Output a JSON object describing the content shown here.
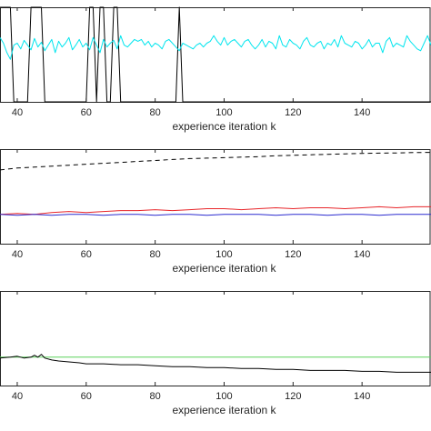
{
  "chart_data": [
    {
      "type": "line",
      "xlabel": "experience iteration k",
      "xlim": [
        35,
        160
      ],
      "ylim": [
        0,
        1
      ],
      "xticks": [
        40,
        60,
        80,
        100,
        120,
        140
      ],
      "grid": false,
      "series": [
        {
          "color": "#000000",
          "x": [
            35,
            36,
            37,
            38,
            39,
            40,
            41,
            42,
            43,
            44,
            45,
            46,
            47,
            48,
            49,
            50,
            51,
            52,
            53,
            54,
            55,
            56,
            57,
            58,
            59,
            60,
            61,
            62,
            63,
            64,
            65,
            66,
            67,
            68,
            69,
            70,
            71,
            72,
            73,
            74,
            75,
            76,
            77,
            78,
            79,
            80,
            81,
            82,
            83,
            84,
            85,
            86,
            87,
            88,
            89,
            90,
            95,
            100,
            110,
            120,
            130,
            140,
            150,
            160
          ],
          "y": [
            1,
            1,
            1,
            1,
            0,
            0,
            0,
            0,
            0,
            1,
            1,
            1,
            1,
            0,
            0,
            0,
            0,
            0,
            0,
            0,
            0,
            0,
            0,
            0,
            0,
            0,
            1,
            1,
            0,
            1,
            1,
            0,
            0,
            1,
            1,
            0,
            0,
            0,
            0,
            0,
            0,
            0,
            0,
            0,
            0,
            0,
            0,
            0,
            0,
            0,
            0,
            0,
            1,
            0,
            0,
            0,
            0,
            0,
            0,
            0,
            0,
            0,
            0,
            0
          ]
        },
        {
          "color": "#00e5ee",
          "x": [
            35,
            36,
            37,
            38,
            39,
            40,
            41,
            42,
            43,
            44,
            45,
            46,
            47,
            48,
            49,
            50,
            51,
            52,
            53,
            54,
            55,
            56,
            57,
            58,
            59,
            60,
            61,
            62,
            63,
            64,
            65,
            66,
            67,
            68,
            69,
            70,
            71,
            72,
            73,
            74,
            75,
            76,
            77,
            78,
            79,
            80,
            81,
            82,
            83,
            84,
            85,
            86,
            87,
            88,
            89,
            90,
            91,
            92,
            93,
            94,
            95,
            96,
            97,
            98,
            99,
            100,
            101,
            102,
            103,
            104,
            105,
            106,
            107,
            108,
            109,
            110,
            111,
            112,
            113,
            114,
            115,
            116,
            117,
            118,
            119,
            120,
            121,
            122,
            123,
            124,
            125,
            126,
            127,
            128,
            129,
            130,
            131,
            132,
            133,
            134,
            135,
            136,
            137,
            138,
            139,
            140,
            141,
            142,
            143,
            144,
            145,
            146,
            147,
            148,
            149,
            150,
            151,
            152,
            153,
            154,
            155,
            156,
            157,
            158,
            159,
            160
          ],
          "y": [
            0.68,
            0.62,
            0.52,
            0.45,
            0.6,
            0.62,
            0.56,
            0.65,
            0.6,
            0.55,
            0.67,
            0.58,
            0.63,
            0.54,
            0.6,
            0.66,
            0.52,
            0.64,
            0.58,
            0.62,
            0.68,
            0.55,
            0.6,
            0.66,
            0.58,
            0.62,
            0.55,
            0.68,
            0.6,
            0.52,
            0.66,
            0.58,
            0.62,
            0.65,
            0.56,
            0.7,
            0.6,
            0.58,
            0.62,
            0.66,
            0.64,
            0.66,
            0.6,
            0.64,
            0.58,
            0.62,
            0.6,
            0.56,
            0.64,
            0.66,
            0.62,
            0.58,
            0.54,
            0.62,
            0.6,
            0.58,
            0.56,
            0.6,
            0.62,
            0.58,
            0.62,
            0.64,
            0.7,
            0.64,
            0.6,
            0.68,
            0.6,
            0.64,
            0.66,
            0.62,
            0.58,
            0.64,
            0.66,
            0.6,
            0.56,
            0.6,
            0.66,
            0.58,
            0.64,
            0.62,
            0.56,
            0.7,
            0.6,
            0.58,
            0.66,
            0.62,
            0.6,
            0.56,
            0.64,
            0.68,
            0.6,
            0.58,
            0.62,
            0.64,
            0.56,
            0.62,
            0.6,
            0.66,
            0.58,
            0.7,
            0.62,
            0.6,
            0.58,
            0.64,
            0.62,
            0.56,
            0.6,
            0.66,
            0.58,
            0.62,
            0.62,
            0.52,
            0.64,
            0.68,
            0.58,
            0.62,
            0.6,
            0.58,
            0.7,
            0.64,
            0.6,
            0.56,
            0.54,
            0.62,
            0.7,
            0.6
          ]
        }
      ]
    },
    {
      "type": "line",
      "xlabel": "experience iteration k",
      "xlim": [
        35,
        160
      ],
      "ylim": [
        0,
        1
      ],
      "xticks": [
        40,
        60,
        80,
        100,
        120,
        140
      ],
      "grid": false,
      "series": [
        {
          "color": "#000000",
          "dash": "dashed",
          "x": [
            35,
            40,
            45,
            50,
            55,
            60,
            65,
            70,
            75,
            80,
            85,
            90,
            95,
            100,
            105,
            110,
            115,
            120,
            125,
            130,
            135,
            140,
            145,
            150,
            155,
            160
          ],
          "y": [
            0.78,
            0.8,
            0.81,
            0.82,
            0.83,
            0.84,
            0.85,
            0.86,
            0.87,
            0.88,
            0.89,
            0.9,
            0.905,
            0.91,
            0.915,
            0.92,
            0.93,
            0.935,
            0.94,
            0.945,
            0.95,
            0.955,
            0.958,
            0.96,
            0.963,
            0.965
          ]
        },
        {
          "color": "#e8262a",
          "x": [
            35,
            40,
            45,
            50,
            55,
            60,
            65,
            70,
            75,
            80,
            85,
            90,
            95,
            100,
            105,
            110,
            115,
            120,
            125,
            130,
            135,
            140,
            145,
            150,
            155,
            160
          ],
          "y": [
            0.31,
            0.32,
            0.31,
            0.33,
            0.34,
            0.33,
            0.34,
            0.35,
            0.35,
            0.36,
            0.35,
            0.36,
            0.37,
            0.37,
            0.36,
            0.37,
            0.38,
            0.37,
            0.38,
            0.38,
            0.37,
            0.38,
            0.39,
            0.38,
            0.39,
            0.39
          ]
        },
        {
          "color": "#2c2ccf",
          "x": [
            35,
            40,
            45,
            50,
            55,
            60,
            65,
            70,
            75,
            80,
            85,
            90,
            95,
            100,
            105,
            110,
            115,
            120,
            125,
            130,
            135,
            140,
            145,
            150,
            155,
            160
          ],
          "y": [
            0.31,
            0.3,
            0.31,
            0.3,
            0.31,
            0.31,
            0.3,
            0.31,
            0.31,
            0.3,
            0.31,
            0.31,
            0.3,
            0.31,
            0.31,
            0.31,
            0.3,
            0.31,
            0.31,
            0.3,
            0.31,
            0.31,
            0.3,
            0.31,
            0.31,
            0.31
          ]
        }
      ]
    },
    {
      "type": "line",
      "xlabel": "experience iteration k",
      "xlim": [
        35,
        160
      ],
      "ylim": [
        0,
        1
      ],
      "xticks": [
        40,
        60,
        80,
        100,
        120,
        140
      ],
      "grid": false,
      "series": [
        {
          "color": "#5ad25a",
          "x": [
            35,
            160
          ],
          "y": [
            0.3,
            0.3
          ]
        },
        {
          "color": "#000000",
          "x": [
            35,
            38,
            40,
            42,
            44,
            45,
            46,
            47,
            48,
            50,
            52,
            55,
            58,
            60,
            65,
            70,
            75,
            80,
            85,
            90,
            95,
            100,
            105,
            110,
            115,
            120,
            125,
            130,
            135,
            140,
            145,
            150,
            155,
            160
          ],
          "y": [
            0.29,
            0.3,
            0.31,
            0.29,
            0.3,
            0.32,
            0.3,
            0.33,
            0.29,
            0.27,
            0.26,
            0.25,
            0.24,
            0.23,
            0.23,
            0.22,
            0.22,
            0.21,
            0.2,
            0.2,
            0.19,
            0.19,
            0.18,
            0.18,
            0.17,
            0.17,
            0.16,
            0.16,
            0.16,
            0.15,
            0.15,
            0.14,
            0.14,
            0.14
          ]
        }
      ]
    }
  ]
}
